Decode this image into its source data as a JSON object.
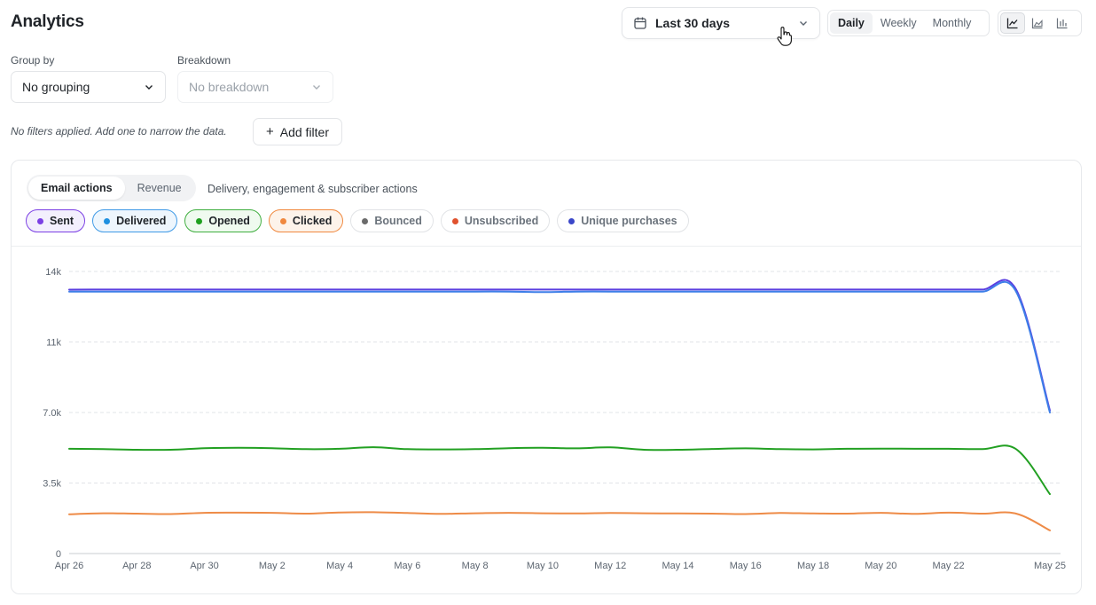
{
  "header": {
    "title": "Analytics",
    "date_range": "Last 30 days",
    "period_options": [
      {
        "label": "Daily",
        "active": true
      },
      {
        "label": "Weekly",
        "active": false
      },
      {
        "label": "Monthly",
        "active": false
      }
    ],
    "chart_type_icons": [
      "line-chart-icon",
      "area-chart-icon",
      "bar-chart-icon"
    ],
    "active_chart_type": "line-chart-icon"
  },
  "controls": {
    "group_by_label": "Group by",
    "group_by_value": "No grouping",
    "breakdown_label": "Breakdown",
    "breakdown_value": "No breakdown",
    "filter_note": "No filters applied. Add one to narrow the data.",
    "add_filter_label": "Add filter"
  },
  "card": {
    "tabs": [
      {
        "label": "Email actions",
        "active": true
      },
      {
        "label": "Revenue",
        "active": false
      }
    ],
    "description": "Delivery, engagement & subscriber actions",
    "legend": [
      {
        "label": "Sent",
        "color": "#7b3fe4",
        "active": true
      },
      {
        "label": "Delivered",
        "color": "#1e90e0",
        "active": true
      },
      {
        "label": "Opened",
        "color": "#1fa01f",
        "active": true
      },
      {
        "label": "Clicked",
        "color": "#f0883e",
        "active": true
      },
      {
        "label": "Bounced",
        "color": "#6b6b6b",
        "active": false
      },
      {
        "label": "Unsubscribed",
        "color": "#e0522e",
        "active": false
      },
      {
        "label": "Unique purchases",
        "color": "#3b47c9",
        "active": false
      }
    ]
  },
  "chart_data": {
    "type": "line",
    "x": [
      "Apr 26",
      "Apr 27",
      "Apr 28",
      "Apr 29",
      "Apr 30",
      "May 1",
      "May 2",
      "May 3",
      "May 4",
      "May 5",
      "May 6",
      "May 7",
      "May 8",
      "May 9",
      "May 10",
      "May 11",
      "May 12",
      "May 13",
      "May 14",
      "May 15",
      "May 16",
      "May 17",
      "May 18",
      "May 19",
      "May 20",
      "May 21",
      "May 22",
      "May 23",
      "May 24",
      "May 25"
    ],
    "x_tick_labels": [
      "Apr 26",
      "Apr 28",
      "Apr 30",
      "May 2",
      "May 4",
      "May 6",
      "May 8",
      "May 10",
      "May 12",
      "May 14",
      "May 16",
      "May 18",
      "May 20",
      "May 22",
      "May 25"
    ],
    "y_ticks": [
      "0",
      "3.5k",
      "7.0k",
      "11k",
      "14k"
    ],
    "y_tick_values": [
      0,
      3500,
      7000,
      10500,
      14000
    ],
    "ylim": [
      0,
      14000
    ],
    "grid": true,
    "series": [
      {
        "name": "Sent",
        "color": "#5a3fe0",
        "values": [
          13100,
          13100,
          13100,
          13100,
          13100,
          13100,
          13100,
          13100,
          13100,
          13100,
          13100,
          13100,
          13100,
          13100,
          13100,
          13100,
          13100,
          13100,
          13100,
          13100,
          13100,
          13100,
          13100,
          13100,
          13100,
          13100,
          13100,
          13100,
          13100,
          7100
        ]
      },
      {
        "name": "Delivered",
        "color": "#3d7ee8",
        "values": [
          13000,
          13000,
          13000,
          13000,
          13000,
          13000,
          13000,
          13000,
          13000,
          13000,
          13000,
          13000,
          13000,
          13000,
          12980,
          13000,
          13000,
          13000,
          13000,
          13000,
          13000,
          13000,
          13000,
          13000,
          13000,
          13000,
          13000,
          13000,
          13000,
          7000
        ]
      },
      {
        "name": "Opened",
        "color": "#22a022",
        "values": [
          5200,
          5180,
          5150,
          5150,
          5230,
          5250,
          5230,
          5180,
          5200,
          5280,
          5180,
          5170,
          5180,
          5230,
          5250,
          5220,
          5270,
          5150,
          5150,
          5190,
          5220,
          5180,
          5170,
          5200,
          5210,
          5200,
          5200,
          5180,
          5180,
          2950
        ]
      },
      {
        "name": "Clicked",
        "color": "#ee8b47",
        "values": [
          1950,
          2000,
          1980,
          1960,
          2020,
          2030,
          2020,
          1980,
          2040,
          2050,
          2010,
          1970,
          2000,
          2020,
          2000,
          1990,
          2010,
          2000,
          1990,
          1980,
          1960,
          2010,
          1990,
          1980,
          2020,
          1970,
          2030,
          1980,
          1980,
          1150
        ]
      }
    ]
  }
}
